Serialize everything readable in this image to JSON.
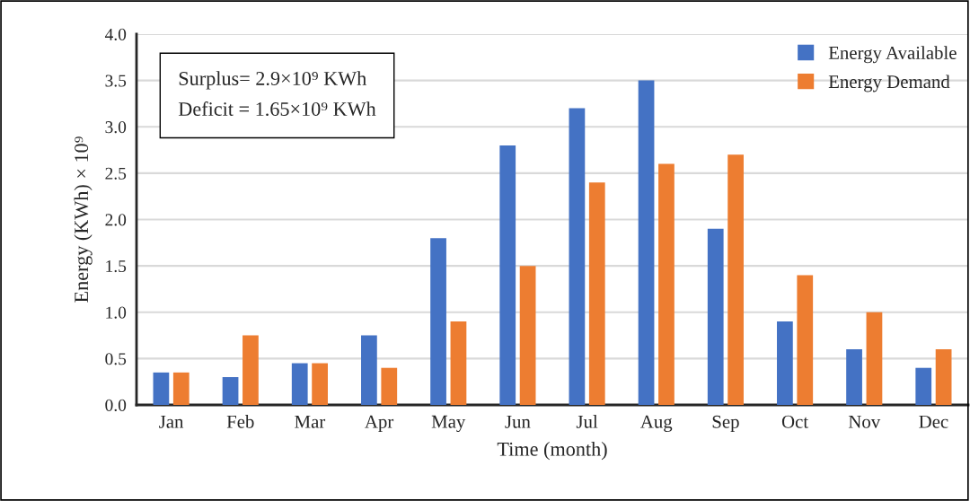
{
  "chart_data": {
    "type": "bar",
    "xlabel": "Time (month)",
    "ylabel": "Energy (KWh) × 10⁹",
    "categories": [
      "Jan",
      "Feb",
      "Mar",
      "Apr",
      "May",
      "Jun",
      "Jul",
      "Aug",
      "Sep",
      "Oct",
      "Nov",
      "Dec"
    ],
    "series": [
      {
        "name": "Energy Available",
        "color": "#4472c4",
        "values": [
          0.35,
          0.3,
          0.45,
          0.75,
          1.8,
          2.8,
          3.2,
          3.5,
          1.9,
          0.9,
          0.6,
          0.4
        ]
      },
      {
        "name": "Energy Demand",
        "color": "#ed7d31",
        "values": [
          0.35,
          0.75,
          0.45,
          0.4,
          0.9,
          1.5,
          2.4,
          2.6,
          2.7,
          1.4,
          1.0,
          0.6
        ]
      }
    ],
    "ylim": [
      0,
      4
    ],
    "yticks": [
      {
        "value": 0,
        "label": "0.0"
      },
      {
        "value": 0.5,
        "label": "0.5"
      },
      {
        "value": 1,
        "label": "1.0"
      },
      {
        "value": 1.5,
        "label": "1.5"
      },
      {
        "value": 2,
        "label": "2.0"
      },
      {
        "value": 2.5,
        "label": "2.5"
      },
      {
        "value": 3,
        "label": "3.0"
      },
      {
        "value": 3.5,
        "label": "3.5"
      },
      {
        "value": 4,
        "label": "4.0"
      }
    ],
    "annotations": [
      "Surplus= 2.9×10⁹ KWh",
      "Deficit = 1.65×10⁹ KWh"
    ],
    "grid": "y",
    "legend": "top right"
  }
}
